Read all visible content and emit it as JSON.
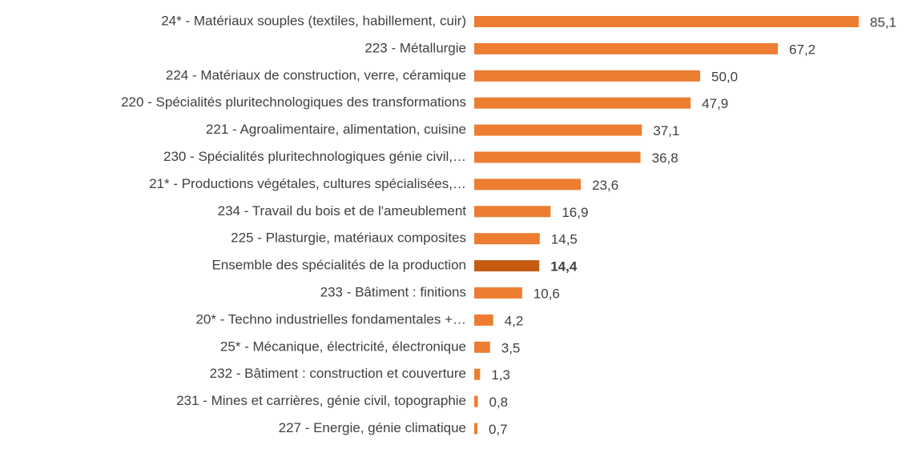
{
  "chart_data": {
    "type": "bar",
    "orientation": "horizontal",
    "categories": [
      "24* - Matériaux souples (textiles, habillement, cuir)",
      "223 - Métallurgie",
      "224 - Matériaux de construction, verre, céramique",
      "220 - Spécialités pluritechnologiques des transformations",
      "221 - Agroalimentaire, alimentation, cuisine",
      "230 - Spécialités pluritechnologiques génie civil,…",
      "21* - Productions végétales, cultures spécialisées,…",
      "234 - Travail du bois et de l'ameublement",
      "225 - Plasturgie, matériaux composites",
      "Ensemble des spécialités de la production",
      "233 - Bâtiment : finitions",
      "20* - Techno industrielles fondamentales +…",
      "25* - Mécanique, électricité, électronique",
      "232 - Bâtiment : construction et couverture",
      "231 - Mines et carrières, génie civil, topographie",
      "227 - Energie, génie climatique"
    ],
    "values": [
      85.1,
      67.2,
      50.0,
      47.9,
      37.1,
      36.8,
      23.6,
      16.9,
      14.5,
      14.4,
      10.6,
      4.2,
      3.5,
      1.3,
      0.8,
      0.7
    ],
    "value_labels": [
      "85,1",
      "67,2",
      "50,0",
      "47,9",
      "37,1",
      "36,8",
      "23,6",
      "16,9",
      "14,5",
      "14,4",
      "10,6",
      "4,2",
      "3,5",
      "1,3",
      "0,8",
      "0,7"
    ],
    "colors": [
      "#ed7d31",
      "#ed7d31",
      "#ed7d31",
      "#ed7d31",
      "#ed7d31",
      "#ed7d31",
      "#ed7d31",
      "#ed7d31",
      "#ed7d31",
      "#c55a11",
      "#ed7d31",
      "#ed7d31",
      "#ed7d31",
      "#ed7d31",
      "#ed7d31",
      "#ed7d31"
    ],
    "highlight_color": "#c55a11"
  }
}
